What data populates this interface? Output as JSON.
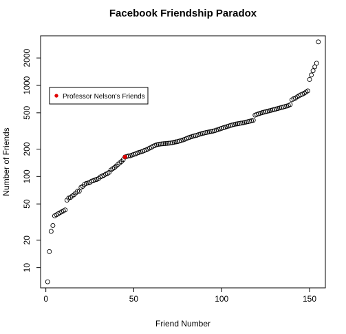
{
  "chart_data": {
    "type": "scatter",
    "title": "Facebook Friendship Paradox",
    "xlabel": "Friend Number",
    "ylabel": "Number of Friends",
    "xlim": [
      -3,
      159
    ],
    "ylim": [
      6,
      3500
    ],
    "y_scale": "log",
    "x_ticks": [
      0,
      50,
      100,
      150
    ],
    "y_ticks": [
      10,
      20,
      50,
      100,
      200,
      500,
      1000,
      2000
    ],
    "legend": {
      "position": "top-left",
      "entries": [
        {
          "label": "Professor Nelson's Friends",
          "color": "#e00000"
        }
      ]
    },
    "highlight": {
      "x": 45,
      "y": 164,
      "color": "#e00000"
    },
    "series": [
      {
        "x": [
          1,
          2,
          3,
          4,
          5,
          6,
          7,
          8,
          9,
          10,
          11,
          12,
          13,
          14,
          15,
          16,
          17,
          18,
          19,
          20,
          21,
          22,
          23,
          24,
          25,
          26,
          27,
          28,
          29,
          30,
          31,
          32,
          33,
          34,
          35,
          36,
          37,
          38,
          39,
          40,
          41,
          42,
          43,
          44,
          45,
          46,
          47,
          48,
          49,
          50,
          51,
          52,
          53,
          54,
          55,
          56,
          57,
          58,
          59,
          60,
          61,
          62,
          63,
          64,
          65,
          66,
          67,
          68,
          69,
          70,
          71,
          72,
          73,
          74,
          75,
          76,
          77,
          78,
          79,
          80,
          81,
          82,
          83,
          84,
          85,
          86,
          87,
          88,
          89,
          90,
          91,
          92,
          93,
          94,
          95,
          96,
          97,
          98,
          99,
          100,
          101,
          102,
          103,
          104,
          105,
          106,
          107,
          108,
          109,
          110,
          111,
          112,
          113,
          114,
          115,
          116,
          117,
          118,
          119,
          120,
          121,
          122,
          123,
          124,
          125,
          126,
          127,
          128,
          129,
          130,
          131,
          132,
          133,
          134,
          135,
          136,
          137,
          138,
          139,
          140,
          141,
          142,
          143,
          144,
          145,
          146,
          147,
          148,
          149,
          150,
          151,
          152,
          153,
          154,
          155
        ],
        "y": [
          7,
          15,
          25,
          29,
          37,
          38,
          39,
          40,
          41,
          42,
          43,
          55,
          58,
          59,
          61,
          63,
          66,
          69,
          69,
          76,
          78,
          82,
          84,
          85,
          86,
          89,
          90,
          92,
          93,
          95,
          99,
          101,
          103,
          106,
          108,
          111,
          118,
          122,
          125,
          130,
          136,
          141,
          146,
          153,
          164,
          166,
          168,
          169,
          172,
          175,
          177,
          181,
          184,
          186,
          189,
          193,
          196,
          200,
          205,
          209,
          215,
          219,
          223,
          225,
          227,
          228,
          229,
          230,
          231,
          232,
          233,
          235,
          238,
          240,
          242,
          245,
          249,
          252,
          256,
          261,
          266,
          270,
          274,
          278,
          281,
          284,
          289,
          293,
          297,
          300,
          303,
          306,
          309,
          312,
          315,
          318,
          323,
          328,
          333,
          338,
          343,
          348,
          353,
          358,
          363,
          368,
          372,
          376,
          379,
          382,
          385,
          388,
          392,
          396,
          400,
          404,
          409,
          414,
          472,
          480,
          488,
          495,
          502,
          508,
          514,
          520,
          526,
          532,
          538,
          544,
          551,
          558,
          565,
          572,
          579,
          586,
          593,
          600,
          616,
          695,
          715,
          725,
          748,
          770,
          788,
          802,
          822,
          845,
          870,
          1160,
          1300,
          1450,
          1600,
          1750,
          3000
        ]
      }
    ]
  }
}
